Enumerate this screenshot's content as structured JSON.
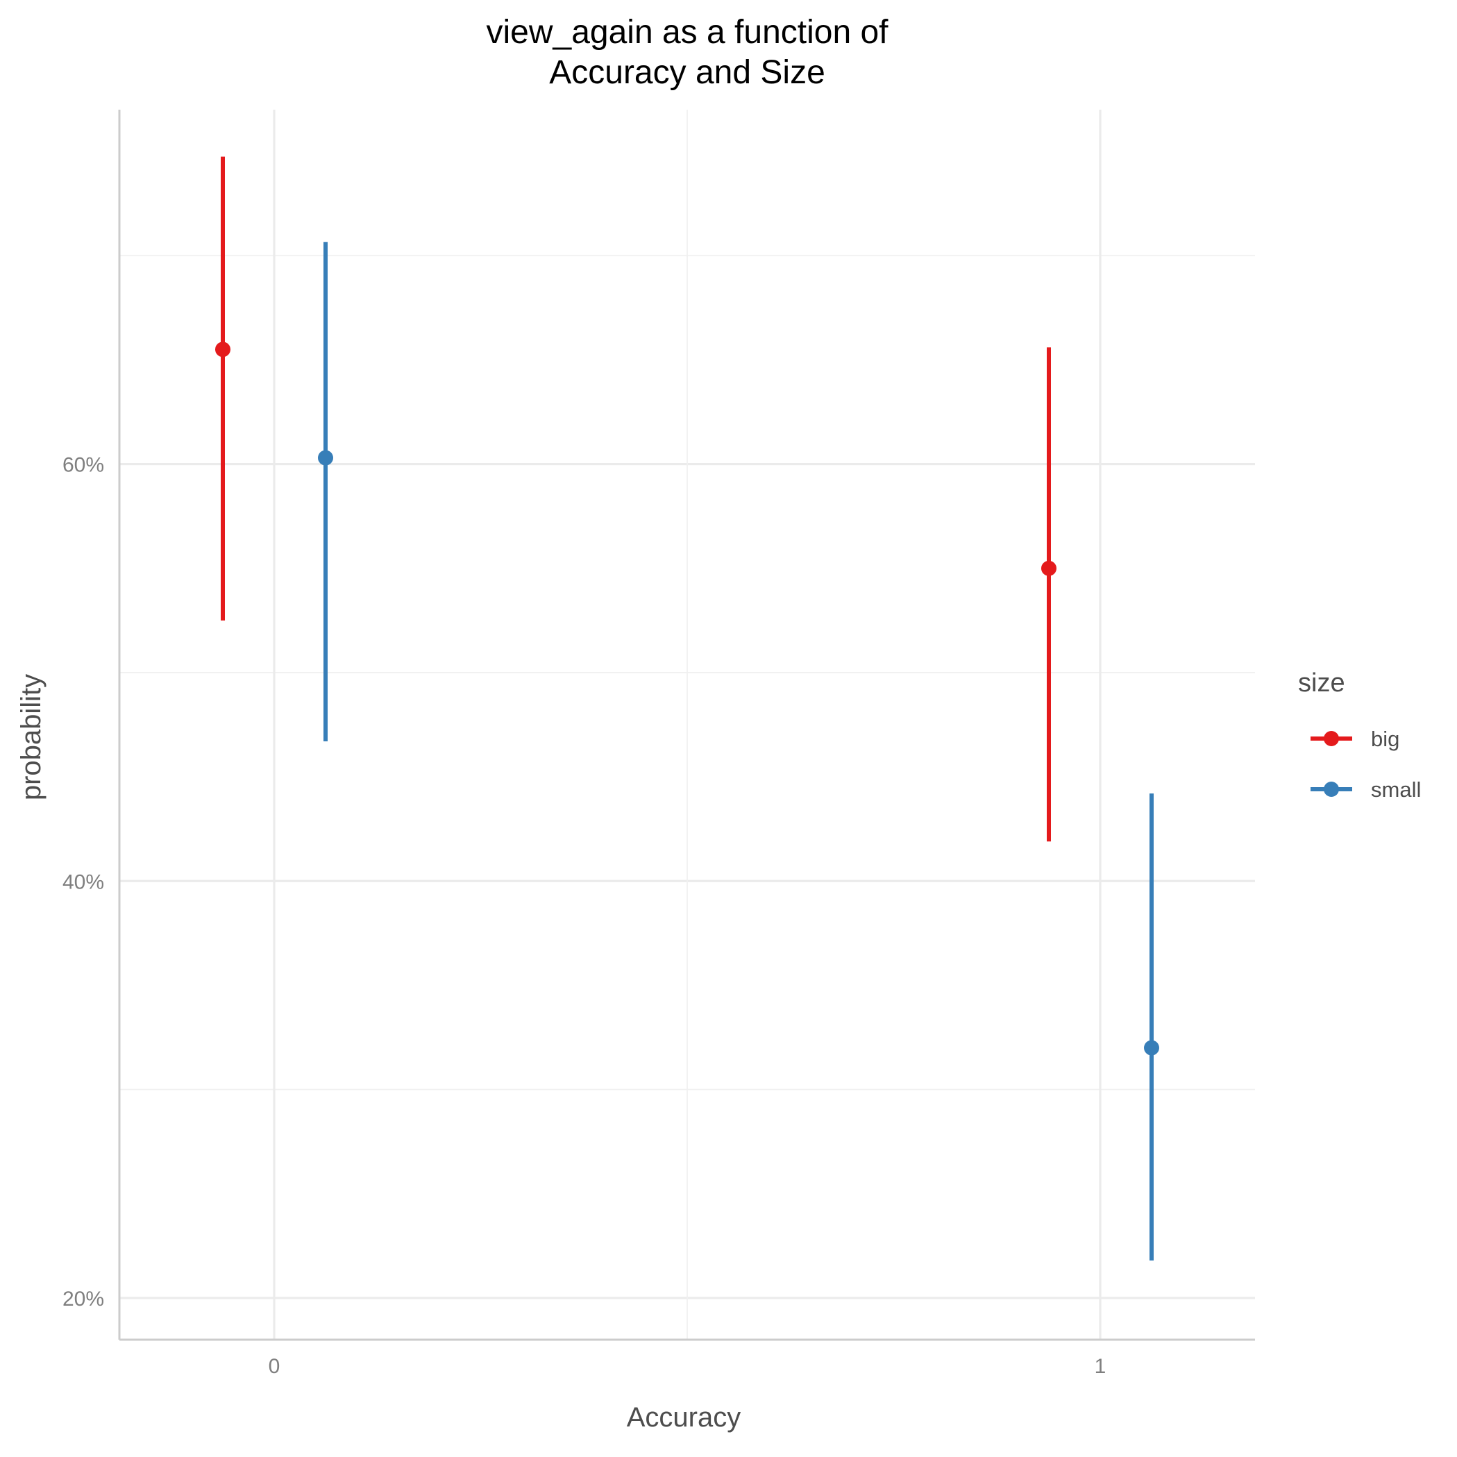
{
  "chart_data": {
    "type": "scatter",
    "title_lines": [
      "view_again as a function of",
      "Accuracy and Size"
    ],
    "xlabel": "Accuracy",
    "ylabel": "probability",
    "x_categories": [
      "0",
      "1"
    ],
    "y_ticks": [
      {
        "value": 0.2,
        "label": "20%"
      },
      {
        "value": 0.4,
        "label": "40%"
      },
      {
        "value": 0.6,
        "label": "60%"
      }
    ],
    "ylim": [
      0.18,
      0.77
    ],
    "grid": true,
    "legend": {
      "title": "size",
      "position": "right"
    },
    "series": [
      {
        "name": "big",
        "color": "#e41a1c",
        "points": [
          {
            "x": "0",
            "y": 0.655,
            "lower": 0.525,
            "upper": 0.7475
          },
          {
            "x": "1",
            "y": 0.55,
            "lower": 0.419,
            "upper": 0.656
          }
        ]
      },
      {
        "name": "small",
        "color": "#377eb8",
        "points": [
          {
            "x": "0",
            "y": 0.603,
            "lower": 0.467,
            "upper": 0.7065
          },
          {
            "x": "1",
            "y": 0.32,
            "lower": 0.218,
            "upper": 0.442
          }
        ]
      }
    ]
  }
}
